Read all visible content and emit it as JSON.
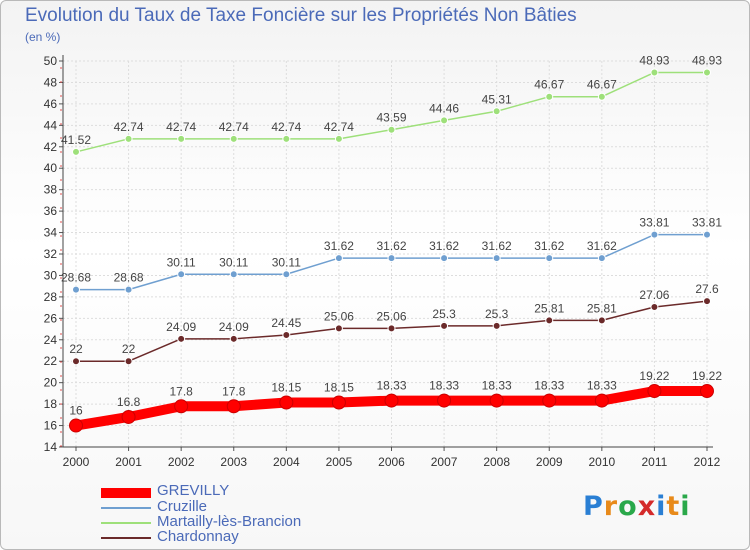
{
  "chart_data": {
    "type": "line",
    "title": "Evolution du Taux de Taxe Foncière sur les Propriétés Non Bâties",
    "subtitle": "(en %)",
    "x": [
      "2000",
      "2001",
      "2002",
      "2003",
      "2004",
      "2005",
      "2006",
      "2007",
      "2008",
      "2009",
      "2010",
      "2011",
      "2012"
    ],
    "ylim": [
      14,
      50
    ],
    "yticks": [
      14,
      16,
      18,
      20,
      22,
      24,
      26,
      28,
      30,
      32,
      34,
      36,
      38,
      40,
      42,
      44,
      46,
      48,
      50
    ],
    "grid": true,
    "legend_position": "bottom-left",
    "series": [
      {
        "name": "GREVILLY",
        "color": "#ff0000",
        "values": [
          16,
          16.8,
          17.8,
          17.8,
          18.15,
          18.15,
          18.33,
          18.33,
          18.33,
          18.33,
          18.33,
          19.22,
          19.22
        ],
        "labels": [
          "16",
          "16.8",
          "17.8",
          "17.8",
          "18.15",
          "18.15",
          "18.33",
          "18.33",
          "18.33",
          "18.33",
          "18.33",
          "19.22",
          "19.22"
        ]
      },
      {
        "name": "Cruzille",
        "color": "#6f9fd0",
        "values": [
          28.68,
          28.68,
          30.11,
          30.11,
          30.11,
          31.62,
          31.62,
          31.62,
          31.62,
          31.62,
          31.62,
          33.81,
          33.81
        ],
        "labels": [
          "28.68",
          "28.68",
          "30.11",
          "30.11",
          "30.11",
          "31.62",
          "31.62",
          "31.62",
          "31.62",
          "31.62",
          "31.62",
          "33.81",
          "33.81"
        ]
      },
      {
        "name": "Martailly-lès-Brancion",
        "color": "#9ee07a",
        "values": [
          41.52,
          42.74,
          42.74,
          42.74,
          42.74,
          42.74,
          43.59,
          44.46,
          45.31,
          46.67,
          46.67,
          48.93,
          48.93
        ],
        "labels": [
          "41.52",
          "42.74",
          "42.74",
          "42.74",
          "42.74",
          "42.74",
          "43.59",
          "44.46",
          "45.31",
          "46.67",
          "46.67",
          "48.93",
          "48.93"
        ]
      },
      {
        "name": "Chardonnay",
        "color": "#6b2a2a",
        "values": [
          22,
          22,
          24.09,
          24.09,
          24.45,
          25.06,
          25.06,
          25.3,
          25.3,
          25.81,
          25.81,
          27.06,
          27.6
        ],
        "labels": [
          "22",
          "22",
          "24.09",
          "24.09",
          "24.45",
          "25.06",
          "25.06",
          "25.3",
          "25.3",
          "25.81",
          "25.81",
          "27.06",
          "27.6"
        ]
      }
    ]
  },
  "logo": {
    "text": "Proxiti",
    "letters": [
      "P",
      "r",
      "o",
      "x",
      "i",
      "t",
      "i"
    ],
    "colors": [
      "#2a7fd4",
      "#e88a1a",
      "#2aa84a",
      "#d42a2a",
      "#2a7fd4",
      "#e88a1a",
      "#2aa84a"
    ]
  }
}
